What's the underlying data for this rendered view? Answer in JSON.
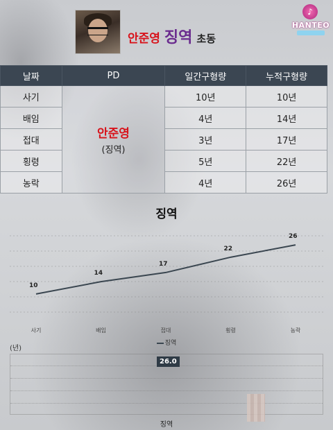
{
  "header": {
    "name": "안준영",
    "crime": "징역",
    "suffix": "초동",
    "avatar_icon": "person-photo-icon"
  },
  "logo": {
    "text": "HANTEO",
    "icon": "hanteo-logo-icon",
    "colors": {
      "pink": "#c23b8d",
      "cyan": "#8fd3ef"
    }
  },
  "table": {
    "headers": [
      "날짜",
      "PD",
      "일간구형량",
      "누적구형량"
    ],
    "pd_name": "안준영",
    "pd_crime": "(징역)",
    "rows": [
      {
        "date": "사기",
        "daily": "10년",
        "cumulative": "10년"
      },
      {
        "date": "배임",
        "daily": "4년",
        "cumulative": "14년"
      },
      {
        "date": "접대",
        "daily": "3년",
        "cumulative": "17년"
      },
      {
        "date": "횡령",
        "daily": "5년",
        "cumulative": "22년"
      },
      {
        "date": "농락",
        "daily": "4년",
        "cumulative": "26년"
      }
    ]
  },
  "chart_data": {
    "type": "line",
    "title": "징역",
    "categories": [
      "사기",
      "배임",
      "접대",
      "횡령",
      "농락"
    ],
    "series": [
      {
        "name": "징역",
        "values": [
          10,
          14,
          17,
          22,
          26
        ],
        "color": "#3a4650"
      }
    ],
    "grid": true,
    "legend": "bottom-center",
    "secondary": {
      "ylabel": "(년)",
      "tooltip_value": "26.0",
      "xlabel": "징역"
    }
  },
  "colors": {
    "header_bg": "#3b4652",
    "accent_red": "#d8131b",
    "accent_purple": "#6a2b8e"
  }
}
